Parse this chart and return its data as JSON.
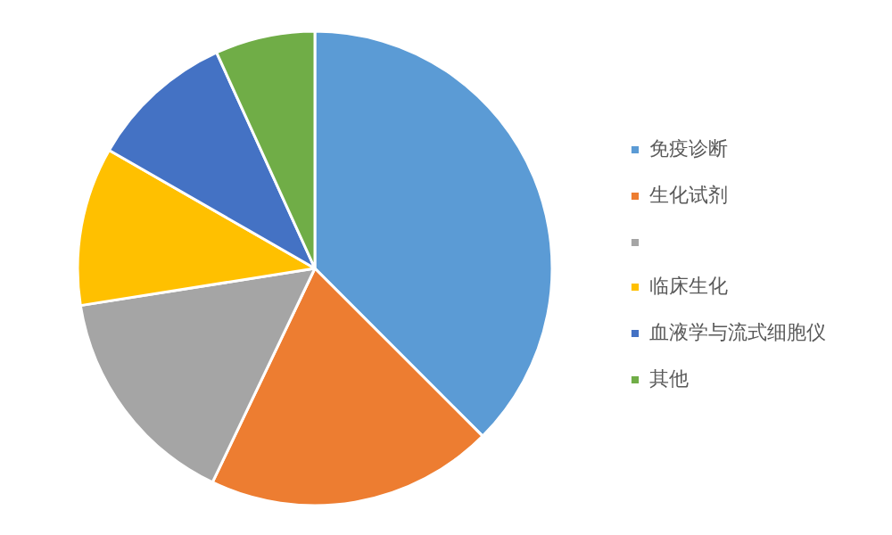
{
  "chart_data": {
    "type": "pie",
    "categories": [
      "免疫诊断",
      "生化试剂",
      null,
      "临床生化",
      "血液学与流式细胞仪",
      "其他"
    ],
    "values": [
      37.5,
      19.6,
      15.4,
      10.8,
      9.9,
      6.8
    ],
    "colors": [
      "#5b9bd5",
      "#ed7d31",
      "#a5a5a5",
      "#ffc000",
      "#4472c4",
      "#70ad47"
    ],
    "legend": "right"
  }
}
